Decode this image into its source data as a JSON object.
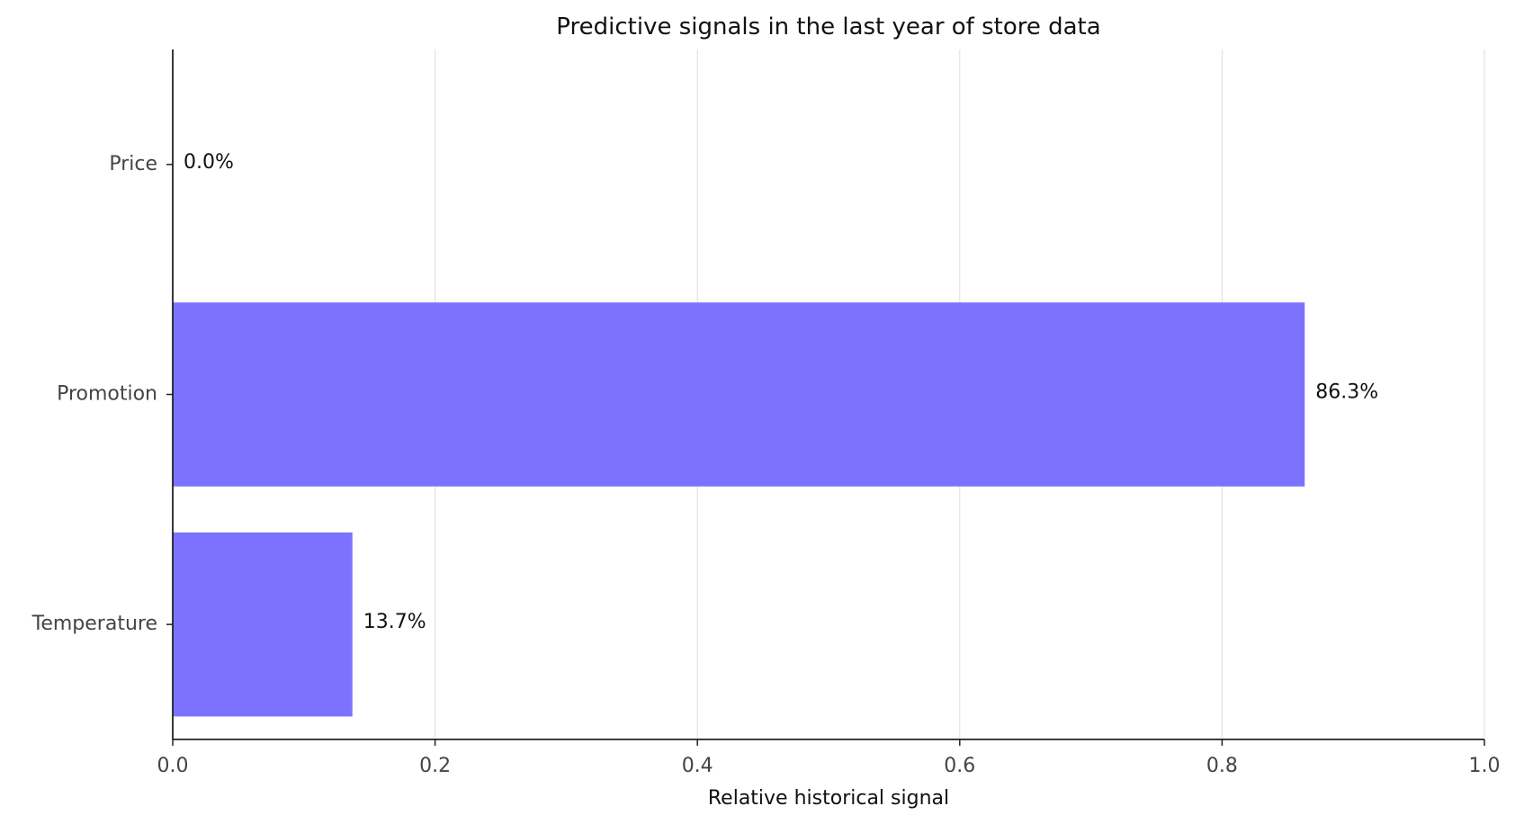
{
  "chart_data": {
    "type": "bar",
    "orientation": "horizontal",
    "title": "Predictive signals in the last year of store data",
    "xlabel": "Relative historical signal",
    "ylabel": "",
    "categories": [
      "Price",
      "Promotion",
      "Temperature"
    ],
    "values": [
      0.0,
      0.863,
      0.137
    ],
    "value_labels": [
      "0.0%",
      "86.3%",
      "13.7%"
    ],
    "xlim": [
      0,
      1
    ],
    "xticks": [
      0.0,
      0.2,
      0.4,
      0.6,
      0.8,
      1.0
    ],
    "xtick_labels": [
      "0.0",
      "0.2",
      "0.4",
      "0.6",
      "0.8",
      "1.0"
    ],
    "grid": "vertical",
    "bar_color": "#7B73FF"
  }
}
